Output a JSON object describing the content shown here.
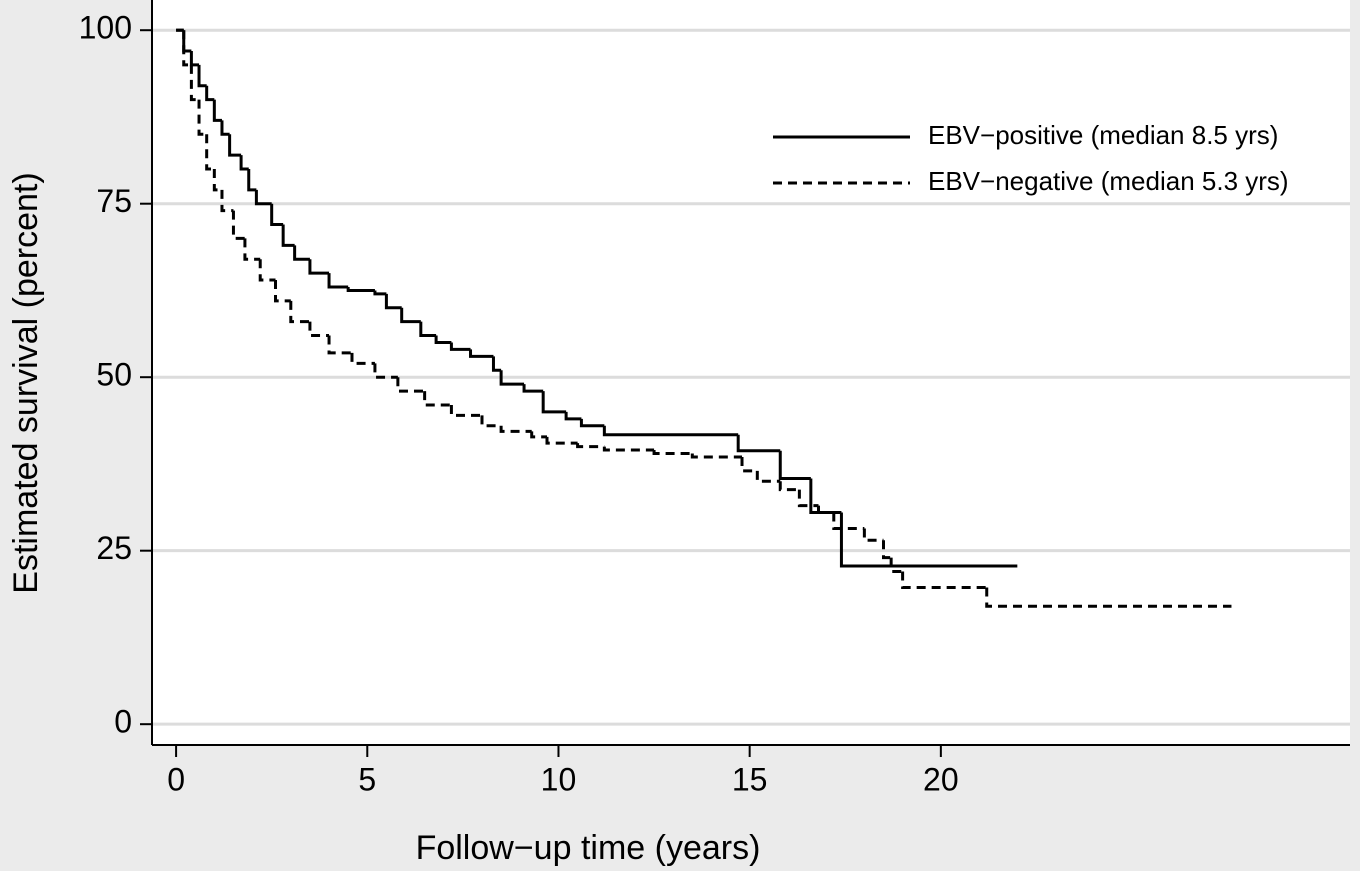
{
  "chart_data": {
    "type": "step",
    "xlabel": "Follow−up time (years)",
    "ylabel": "Estimated survival (percent)",
    "xlim": [
      -0.63,
      30.7
    ],
    "ylim": [
      -3,
      103.2
    ],
    "xticks": [
      0,
      5,
      10,
      15,
      20
    ],
    "yticks": [
      0,
      25,
      50,
      75,
      100
    ],
    "grid": true,
    "legend": "top-right",
    "series": [
      {
        "name": "EBV−positive (median 8.5 yrs)",
        "color": "#000000",
        "dash": "solid",
        "x": [
          0,
          0.2,
          0.4,
          0.6,
          0.8,
          1.0,
          1.2,
          1.4,
          1.7,
          1.9,
          2.1,
          2.5,
          2.8,
          3.1,
          3.5,
          4.0,
          4.5,
          5.2,
          5.5,
          5.9,
          6.4,
          6.8,
          7.2,
          7.7,
          8.3,
          8.5,
          9.1,
          9.6,
          10.2,
          10.6,
          11.2,
          14.7,
          15.8,
          16.6,
          17.4,
          22.0
        ],
        "values": [
          100,
          97,
          95,
          92,
          90,
          87,
          85,
          82,
          80,
          77,
          75,
          72,
          69,
          67,
          65,
          63,
          62.5,
          62,
          60,
          58,
          56,
          55,
          54,
          53,
          51,
          49,
          48,
          45,
          44,
          43,
          41.7,
          39.4,
          35.4,
          30.5,
          22.8,
          22.8
        ]
      },
      {
        "name": "EBV−negative (median 5.3 yrs)",
        "color": "#000000",
        "dash": "dashed",
        "x": [
          0,
          0.2,
          0.4,
          0.6,
          0.8,
          1.0,
          1.2,
          1.5,
          1.8,
          2.2,
          2.6,
          3.0,
          3.5,
          4.0,
          4.6,
          5.2,
          5.8,
          6.5,
          7.2,
          8.0,
          8.5,
          9.3,
          9.7,
          10.5,
          11.2,
          12.5,
          13.5,
          14.8,
          15.2,
          15.8,
          16.3,
          16.8,
          17.2,
          18.0,
          18.5,
          18.7,
          19.0,
          21.2,
          27.6
        ],
        "values": [
          100,
          95,
          90,
          85,
          80,
          77,
          74,
          70,
          67,
          64,
          61,
          58,
          56,
          53.5,
          52,
          50,
          48,
          46,
          44.5,
          43,
          42.2,
          41.4,
          40.5,
          40,
          39.5,
          39,
          38.5,
          36.5,
          35,
          33.8,
          31.5,
          30.5,
          28.2,
          26.5,
          24,
          22,
          19.7,
          17,
          17
        ]
      }
    ]
  }
}
